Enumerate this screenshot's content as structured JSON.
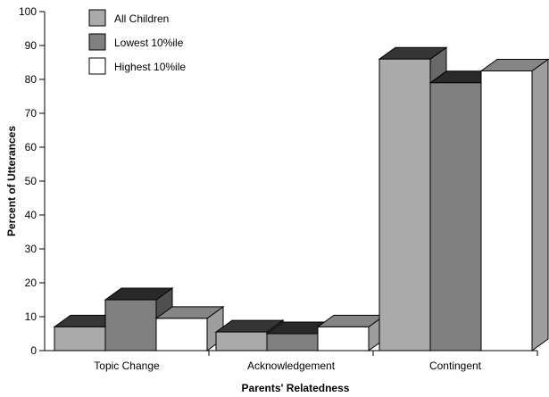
{
  "chart_data": {
    "type": "bar",
    "title": "",
    "xlabel": "Parents' Relatedness",
    "ylabel": "Percent of Utterances",
    "ylim": [
      0,
      100
    ],
    "yticks": [
      0,
      10,
      20,
      30,
      40,
      50,
      60,
      70,
      80,
      90,
      100
    ],
    "categories": [
      "Topic Change",
      "Acknowledgement",
      "Contingent"
    ],
    "series": [
      {
        "name": "All Children",
        "values": [
          7,
          5.5,
          86
        ],
        "color": "#aaaaaa"
      },
      {
        "name": "Lowest 10%ile",
        "values": [
          15,
          5,
          79
        ],
        "color": "#808080"
      },
      {
        "name": "Highest 10%ile",
        "values": [
          9.5,
          7,
          82.5
        ],
        "color": "#ffffff"
      }
    ],
    "legend": "top-left",
    "grid": false,
    "style": "3d"
  }
}
